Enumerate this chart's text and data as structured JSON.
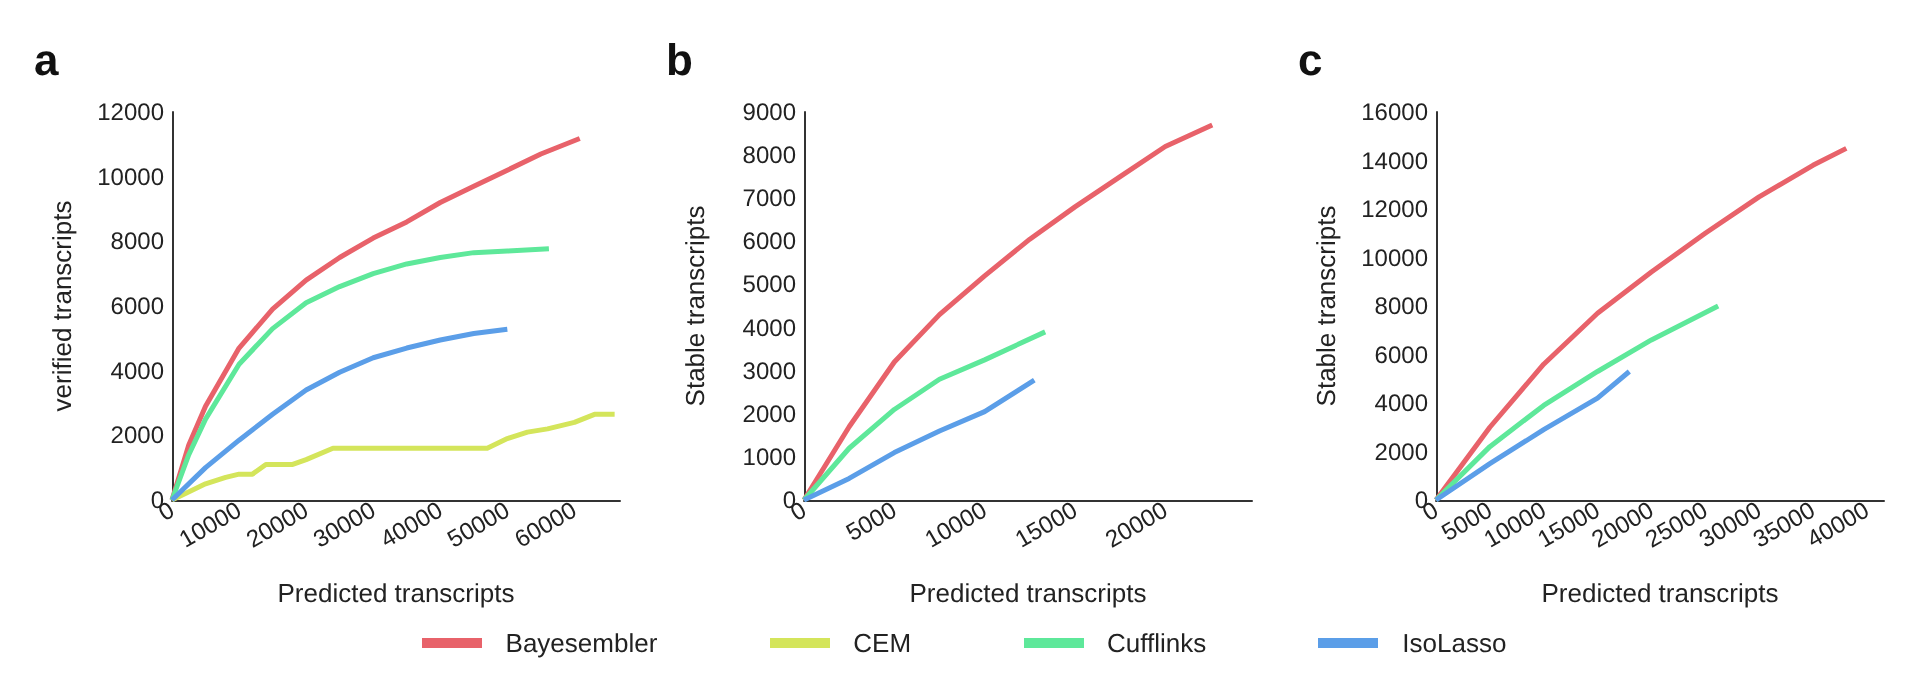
{
  "chart_data": [
    {
      "type": "line",
      "title": "a",
      "xlabel": "Predicted transcripts",
      "ylabel": "verified transcripts",
      "xlim": [
        0,
        66800
      ],
      "xticks": [
        0,
        10000,
        20000,
        30000,
        40000,
        50000,
        60000
      ],
      "ylim": [
        0,
        12000
      ],
      "yticks": [
        0,
        2000,
        4000,
        6000,
        8000,
        10000,
        12000
      ],
      "grid": false,
      "legend": "bottom",
      "series": [
        {
          "name": "Bayesembler",
          "color": "#e8626a",
          "x": [
            0,
            2500,
            5000,
            10000,
            15000,
            20000,
            25000,
            30000,
            35000,
            40000,
            45000,
            50000,
            55000,
            60800
          ],
          "values": [
            0,
            1700,
            2900,
            4700,
            5900,
            6800,
            7500,
            8100,
            8600,
            9200,
            9700,
            10200,
            10700,
            11180
          ]
        },
        {
          "name": "CEM",
          "color": "#d4e55b",
          "x": [
            0,
            5000,
            8000,
            10000,
            12000,
            14000,
            18000,
            20000,
            24000,
            47000,
            50000,
            53000,
            56000,
            60000,
            63000,
            66000
          ],
          "values": [
            0,
            500,
            700,
            800,
            800,
            1100,
            1100,
            1250,
            1600,
            1600,
            1900,
            2100,
            2200,
            2400,
            2650,
            2650
          ]
        },
        {
          "name": "Cufflinks",
          "color": "#5ee89a",
          "x": [
            0,
            2500,
            5000,
            10000,
            15000,
            20000,
            25000,
            30000,
            35000,
            40000,
            45000,
            50000,
            56200
          ],
          "values": [
            0,
            1400,
            2500,
            4200,
            5300,
            6100,
            6600,
            7000,
            7300,
            7500,
            7650,
            7700,
            7770
          ]
        },
        {
          "name": "IsoLasso",
          "color": "#5b9ee8",
          "x": [
            0,
            5000,
            10000,
            15000,
            20000,
            25000,
            30000,
            35000,
            40000,
            45000,
            50000
          ],
          "values": [
            0,
            1000,
            1850,
            2650,
            3400,
            3950,
            4400,
            4700,
            4950,
            5150,
            5280
          ]
        }
      ]
    },
    {
      "type": "line",
      "title": "b",
      "xlabel": "Predicted transcripts",
      "ylabel": "Stable transcripts",
      "xlim": [
        0,
        24800
      ],
      "xticks": [
        0,
        5000,
        10000,
        15000,
        20000
      ],
      "ylim": [
        0,
        9000
      ],
      "yticks": [
        0,
        1000,
        2000,
        3000,
        4000,
        5000,
        6000,
        7000,
        8000,
        9000
      ],
      "grid": false,
      "legend": "bottom",
      "series": [
        {
          "name": "Bayesembler",
          "color": "#e8626a",
          "x": [
            0,
            2500,
            5000,
            7500,
            10000,
            12500,
            15000,
            17500,
            20000,
            22600
          ],
          "values": [
            0,
            1700,
            3200,
            4300,
            5200,
            6050,
            6800,
            7500,
            8200,
            8700
          ]
        },
        {
          "name": "Cufflinks",
          "color": "#5ee89a",
          "x": [
            0,
            2500,
            5000,
            7500,
            10000,
            13350
          ],
          "values": [
            0,
            1200,
            2100,
            2800,
            3250,
            3900
          ]
        },
        {
          "name": "IsoLasso",
          "color": "#5b9ee8",
          "x": [
            0,
            2500,
            5000,
            7500,
            10000,
            12750
          ],
          "values": [
            0,
            500,
            1100,
            1600,
            2050,
            2780
          ]
        }
      ]
    },
    {
      "type": "line",
      "title": "c",
      "xlabel": "Predicted transcripts",
      "ylabel": "Stable transcripts",
      "xlim": [
        0,
        41600
      ],
      "xticks": [
        0,
        5000,
        10000,
        15000,
        20000,
        25000,
        30000,
        35000,
        40000
      ],
      "ylim": [
        0,
        16000
      ],
      "yticks": [
        0,
        2000,
        4000,
        6000,
        8000,
        10000,
        12000,
        14000,
        16000
      ],
      "grid": false,
      "legend": "bottom",
      "series": [
        {
          "name": "Bayesembler",
          "color": "#e8626a",
          "x": [
            0,
            5000,
            10000,
            15000,
            20000,
            25000,
            30000,
            35000,
            38100
          ],
          "values": [
            0,
            3000,
            5600,
            7700,
            9400,
            11000,
            12500,
            13800,
            14500
          ]
        },
        {
          "name": "Cufflinks",
          "color": "#5ee89a",
          "x": [
            0,
            5000,
            10000,
            15000,
            20000,
            26200
          ],
          "values": [
            0,
            2200,
            3900,
            5300,
            6600,
            8000
          ]
        },
        {
          "name": "IsoLasso",
          "color": "#5b9ee8",
          "x": [
            0,
            5000,
            10000,
            15000,
            17950
          ],
          "values": [
            0,
            1500,
            2900,
            4200,
            5300
          ]
        }
      ]
    }
  ]
}
